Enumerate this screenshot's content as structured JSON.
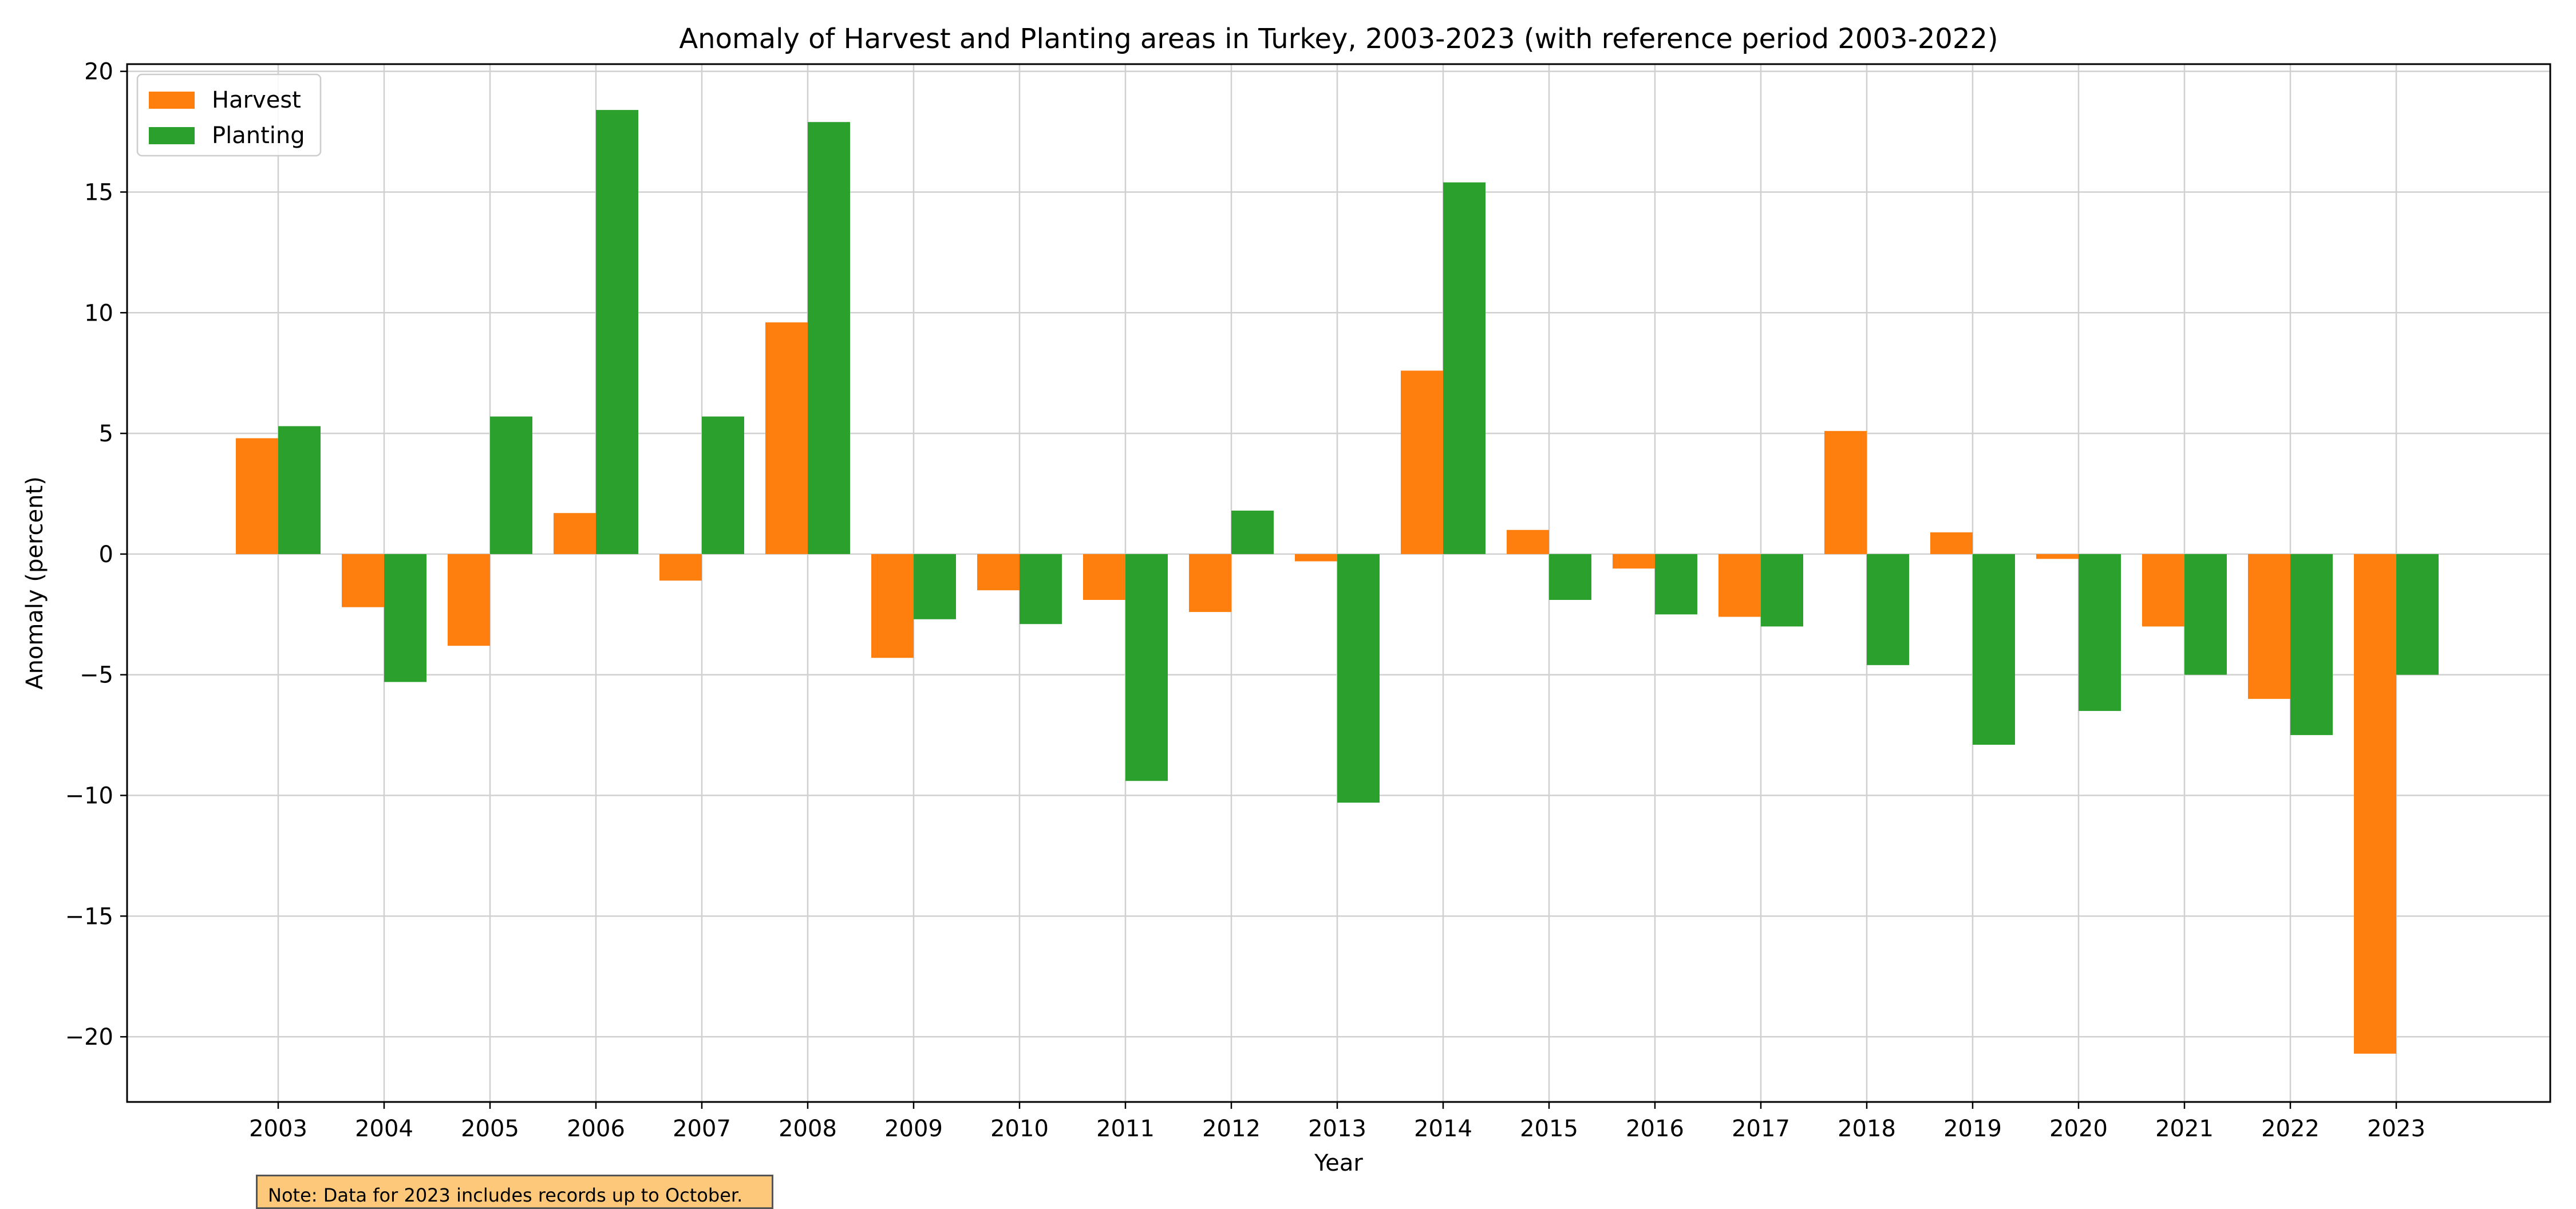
{
  "chart_data": {
    "type": "bar",
    "title": "Anomaly of Harvest and Planting areas in Turkey, 2003-2023 (with reference period 2003-2022)",
    "xlabel": "Year",
    "ylabel": "Anomaly (percent)",
    "categories": [
      "2003",
      "2004",
      "2005",
      "2006",
      "2007",
      "2008",
      "2009",
      "2010",
      "2011",
      "2012",
      "2013",
      "2014",
      "2015",
      "2016",
      "2017",
      "2018",
      "2019",
      "2020",
      "2021",
      "2022",
      "2023"
    ],
    "series": [
      {
        "name": "Harvest",
        "color": "#ff7f0e",
        "values": [
          4.8,
          -2.2,
          -3.8,
          1.7,
          -1.1,
          9.6,
          -4.3,
          -1.5,
          -1.9,
          -2.4,
          -0.3,
          7.6,
          1.0,
          -0.6,
          -2.6,
          5.1,
          0.9,
          -0.2,
          -3.0,
          -6.0,
          -20.7
        ]
      },
      {
        "name": "Planting",
        "color": "#2ca02c",
        "values": [
          5.3,
          -5.3,
          5.7,
          18.4,
          5.7,
          17.9,
          -2.7,
          -2.9,
          -9.4,
          1.8,
          -10.3,
          15.4,
          -1.9,
          -2.5,
          -3.0,
          -4.6,
          -7.9,
          -6.5,
          -5.0,
          -7.5,
          -5.0
        ]
      }
    ],
    "ylim": [
      -22.7,
      20.3
    ],
    "yticks": [
      20,
      15,
      10,
      5,
      0,
      -5,
      -10,
      -15,
      -20
    ],
    "grid": true,
    "legend": "top-left"
  },
  "note": "Note: Data for 2023 includes records up to October."
}
